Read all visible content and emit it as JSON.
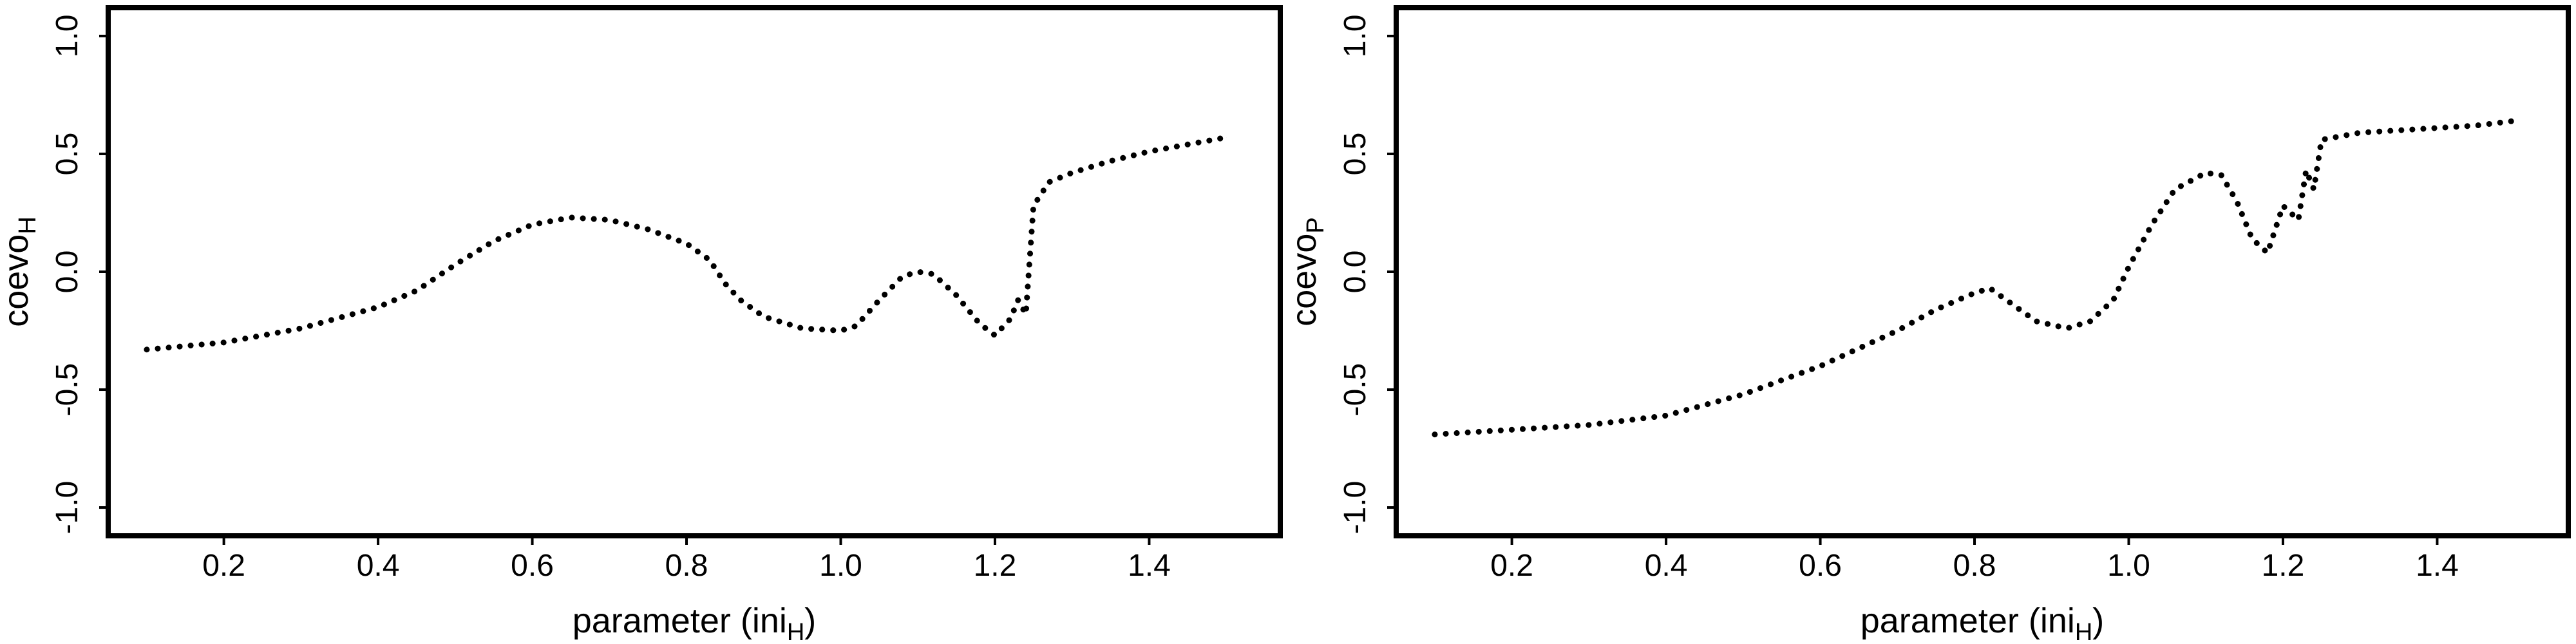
{
  "chart_data": [
    {
      "type": "line",
      "xlabel": "parameter (ini",
      "xlabel_sub": "H",
      "xlabel_close": ")",
      "ylabel": "coevo",
      "ylabel_sub": "H",
      "xlim": [
        0.05,
        1.57
      ],
      "ylim": [
        -1.12,
        1.12
      ],
      "x_ticks": [
        "0.2",
        "0.4",
        "0.6",
        "0.8",
        "1.0",
        "1.2",
        "1.4"
      ],
      "y_ticks": [
        "-1.0",
        "-0.5",
        "0.0",
        "0.5",
        "1.0"
      ],
      "grid": false,
      "series": [
        {
          "style": "dotted-with-short-segments",
          "points": [
            [
              0.1,
              -0.33
            ],
            [
              0.2,
              -0.3
            ],
            [
              0.3,
              -0.24
            ],
            [
              0.4,
              -0.15
            ],
            [
              0.45,
              -0.08
            ],
            [
              0.5,
              0.03
            ],
            [
              0.55,
              0.13
            ],
            [
              0.6,
              0.2
            ],
            [
              0.65,
              0.23
            ],
            [
              0.7,
              0.22
            ],
            [
              0.75,
              0.18
            ],
            [
              0.8,
              0.12
            ],
            [
              0.83,
              0.05
            ],
            [
              0.85,
              -0.05
            ],
            [
              0.87,
              -0.12
            ],
            [
              0.9,
              -0.19
            ],
            [
              0.95,
              -0.24
            ],
            [
              1.0,
              -0.25
            ],
            [
              1.02,
              -0.23
            ],
            [
              1.05,
              -0.12
            ],
            [
              1.08,
              -0.02
            ],
            [
              1.1,
              0.0
            ],
            [
              1.12,
              -0.01
            ],
            [
              1.15,
              -0.1
            ],
            [
              1.18,
              -0.22
            ],
            [
              1.2,
              -0.27
            ],
            [
              1.22,
              -0.2
            ],
            [
              1.23,
              -0.12
            ],
            [
              1.24,
              -0.18
            ],
            [
              1.25,
              0.28
            ],
            [
              1.27,
              0.38
            ],
            [
              1.3,
              0.42
            ],
            [
              1.35,
              0.47
            ],
            [
              1.4,
              0.51
            ],
            [
              1.45,
              0.54
            ],
            [
              1.5,
              0.57
            ]
          ]
        }
      ]
    },
    {
      "type": "line",
      "xlabel": "parameter (ini",
      "xlabel_sub": "H",
      "xlabel_close": ")",
      "ylabel": "coevo",
      "ylabel_sub": "P",
      "xlim": [
        0.05,
        1.57
      ],
      "ylim": [
        -1.12,
        1.12
      ],
      "x_ticks": [
        "0.2",
        "0.4",
        "0.6",
        "0.8",
        "1.0",
        "1.2",
        "1.4"
      ],
      "y_ticks": [
        "-1.0",
        "-0.5",
        "0.0",
        "0.5",
        "1.0"
      ],
      "grid": false,
      "series": [
        {
          "style": "dotted-with-short-segments",
          "points": [
            [
              0.1,
              -0.69
            ],
            [
              0.2,
              -0.67
            ],
            [
              0.3,
              -0.65
            ],
            [
              0.4,
              -0.61
            ],
            [
              0.5,
              -0.52
            ],
            [
              0.6,
              -0.4
            ],
            [
              0.7,
              -0.25
            ],
            [
              0.75,
              -0.16
            ],
            [
              0.8,
              -0.09
            ],
            [
              0.82,
              -0.07
            ],
            [
              0.85,
              -0.14
            ],
            [
              0.88,
              -0.21
            ],
            [
              0.92,
              -0.24
            ],
            [
              0.95,
              -0.21
            ],
            [
              0.98,
              -0.12
            ],
            [
              1.0,
              0.02
            ],
            [
              1.03,
              0.2
            ],
            [
              1.06,
              0.35
            ],
            [
              1.1,
              0.42
            ],
            [
              1.12,
              0.41
            ],
            [
              1.14,
              0.3
            ],
            [
              1.16,
              0.14
            ],
            [
              1.18,
              0.08
            ],
            [
              1.2,
              0.28
            ],
            [
              1.22,
              0.22
            ],
            [
              1.23,
              0.43
            ],
            [
              1.24,
              0.35
            ],
            [
              1.25,
              0.56
            ],
            [
              1.3,
              0.59
            ],
            [
              1.35,
              0.6
            ],
            [
              1.4,
              0.61
            ],
            [
              1.45,
              0.62
            ],
            [
              1.5,
              0.64
            ]
          ]
        }
      ]
    }
  ]
}
